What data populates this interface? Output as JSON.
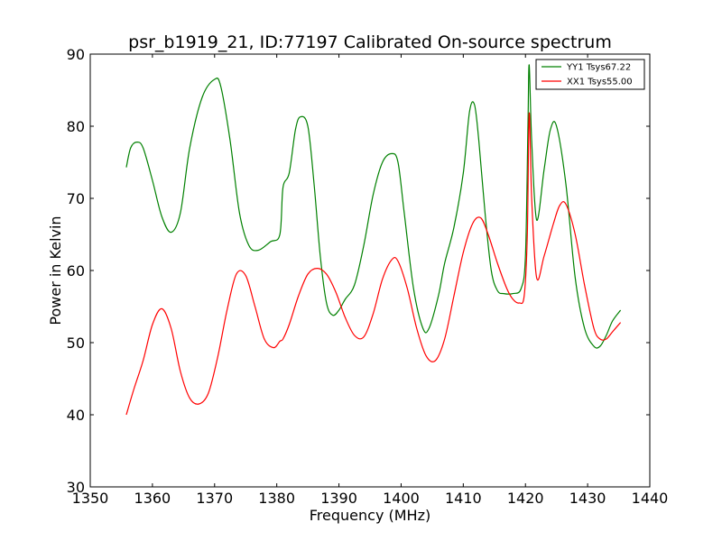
{
  "chart_data": {
    "type": "line",
    "title": "psr_b1919_21, ID:77197 Calibrated On-source spectrum",
    "xlabel": "Frequency (MHz)",
    "ylabel": "Power in Kelvin",
    "xlim": [
      1350,
      1440
    ],
    "ylim": [
      30,
      90
    ],
    "xticks": [
      1350,
      1360,
      1370,
      1380,
      1390,
      1400,
      1410,
      1420,
      1430,
      1440
    ],
    "yticks": [
      30,
      40,
      50,
      60,
      70,
      80,
      90
    ],
    "grid": false,
    "legend_position": "top-right",
    "series": [
      {
        "name": "YY1 Tsys67.22",
        "color": "#008000",
        "x": [
          1355.8,
          1356.5,
          1357.5,
          1358.5,
          1360,
          1361.5,
          1363,
          1364.5,
          1366,
          1368,
          1370,
          1371,
          1372.5,
          1374,
          1375.5,
          1377,
          1379,
          1380.5,
          1381,
          1382,
          1383,
          1383.8,
          1385,
          1386,
          1387,
          1388,
          1389,
          1390,
          1391,
          1392.5,
          1394,
          1395.5,
          1397,
          1398.5,
          1399.5,
          1400.5,
          1402,
          1403.5,
          1404.5,
          1406,
          1407,
          1408.5,
          1410,
          1411,
          1411.8,
          1412.5,
          1413.5,
          1414.5,
          1415.5,
          1416.5,
          1418,
          1419.3,
          1420,
          1420.4,
          1420.6,
          1421,
          1421.8,
          1423,
          1424,
          1425,
          1426.5,
          1428,
          1429.5,
          1431,
          1432,
          1433,
          1434,
          1435.3
        ],
        "values": [
          74.3,
          77,
          77.8,
          77,
          72.5,
          67.5,
          65.3,
          68,
          77,
          84,
          86.5,
          85.5,
          78,
          68,
          63.5,
          62.8,
          64,
          65,
          71.5,
          73.5,
          79.5,
          81.3,
          80,
          72,
          62,
          55.5,
          53.8,
          54.5,
          56,
          58,
          63.5,
          70.5,
          75,
          76.2,
          75,
          68,
          57.5,
          52,
          52,
          56.5,
          61,
          66,
          73.5,
          82,
          83,
          78,
          68,
          60,
          57.2,
          56.8,
          56.8,
          57.5,
          62,
          80,
          88.5,
          78,
          67,
          74,
          79.5,
          80,
          72,
          59,
          52,
          49.5,
          49.5,
          51,
          53,
          54.5
        ]
      },
      {
        "name": "XX1 Tsys55.00",
        "color": "#ff0000",
        "x": [
          1355.8,
          1357,
          1358.5,
          1360,
          1361.5,
          1363,
          1364.5,
          1366,
          1367.5,
          1369,
          1370.5,
          1372,
          1373.5,
          1375,
          1376.5,
          1378,
          1379.5,
          1380.5,
          1381,
          1382,
          1383.5,
          1385,
          1386.5,
          1388,
          1389.5,
          1391,
          1392.5,
          1394,
          1395.5,
          1397,
          1398.5,
          1399.5,
          1401,
          1402.5,
          1404,
          1405.5,
          1407,
          1408.5,
          1410,
          1411.5,
          1412.8,
          1414,
          1415.5,
          1417,
          1418,
          1419,
          1419.8,
          1420.3,
          1420.6,
          1421,
          1421.8,
          1423,
          1424.5,
          1425.5,
          1426.5,
          1428,
          1429.5,
          1431,
          1432,
          1433,
          1434,
          1435.3
        ],
        "values": [
          40,
          43.5,
          47.5,
          52.5,
          54.7,
          52,
          46,
          42.3,
          41.5,
          43,
          48,
          54.5,
          59.5,
          59.3,
          55,
          50.5,
          49.3,
          50.2,
          50.5,
          52.5,
          56.5,
          59.5,
          60.3,
          59.5,
          57,
          53.5,
          51,
          50.8,
          54,
          58.8,
          61.5,
          61.3,
          57.5,
          52,
          48.2,
          47.5,
          50.5,
          56.5,
          62.5,
          66.5,
          67.3,
          65,
          61,
          57.5,
          56,
          55.5,
          56.5,
          65,
          81.8,
          70,
          59,
          62,
          66.5,
          69,
          69.2,
          65,
          58,
          52,
          50.5,
          50.5,
          51.5,
          52.8
        ]
      }
    ]
  }
}
